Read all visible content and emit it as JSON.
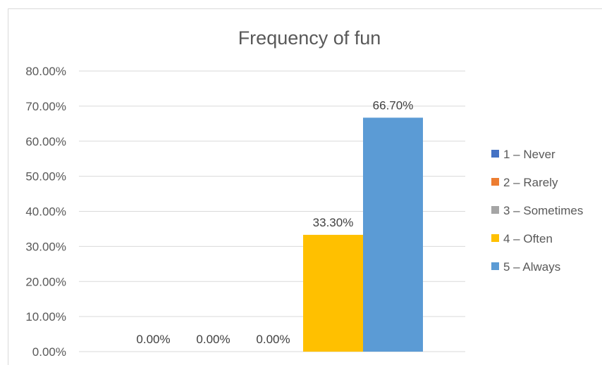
{
  "chart_data": {
    "type": "bar",
    "title": "Frequency of fun",
    "xlabel": "",
    "ylabel": "",
    "ylim": [
      0,
      0.8
    ],
    "ytick_labels": [
      "0.00%",
      "10.00%",
      "20.00%",
      "30.00%",
      "40.00%",
      "50.00%",
      "60.00%",
      "70.00%",
      "80.00%"
    ],
    "grid": true,
    "legend_position": "right",
    "series": [
      {
        "name": "1 – Never",
        "value": 0.0,
        "label": "0.00%",
        "color": "#4472C4"
      },
      {
        "name": "2 – Rarely",
        "value": 0.0,
        "label": "0.00%",
        "color": "#ED7D31"
      },
      {
        "name": "3 – Sometimes",
        "value": 0.0,
        "label": "0.00%",
        "color": "#A5A5A5"
      },
      {
        "name": "4 – Often",
        "value": 0.333,
        "label": "33.30%",
        "color": "#FFC000"
      },
      {
        "name": "5 – Always",
        "value": 0.667,
        "label": "66.70%",
        "color": "#5B9BD5"
      }
    ]
  }
}
